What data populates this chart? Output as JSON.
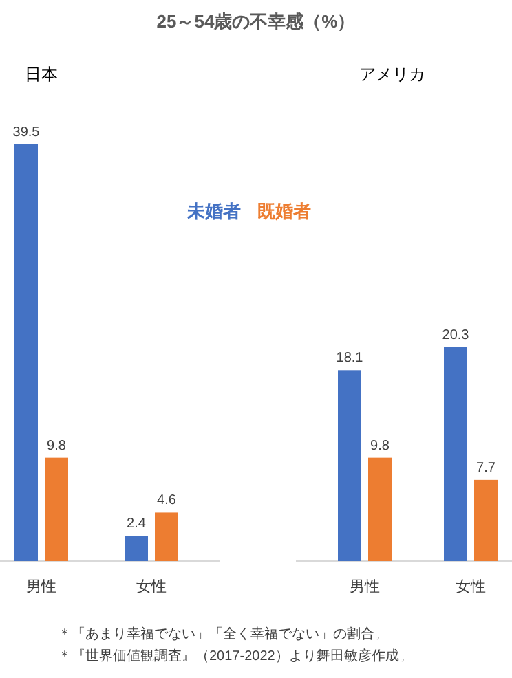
{
  "chart_data": [
    {
      "type": "bar",
      "title": "25～54歳の不幸感（%）",
      "subtitle": "日本",
      "categories": [
        "男性",
        "女性"
      ],
      "data_labels": true,
      "legend": "top right",
      "series": [
        {
          "name": "未婚者",
          "color": "#4472c4",
          "values": [
            39.5,
            2.4
          ]
        },
        {
          "name": "既婚者",
          "color": "#ed7d31",
          "values": [
            9.8,
            4.6
          ]
        }
      ]
    },
    {
      "type": "bar",
      "subtitle": "アメリカ",
      "categories": [
        "男性",
        "女性"
      ],
      "data_labels": true,
      "series": [
        {
          "color": "#4472c4",
          "values": [
            18.1,
            20.3
          ]
        },
        {
          "color": "#ed7d31",
          "values": [
            9.8,
            7.7
          ]
        }
      ],
      "annotations": [
        "＊「あまり幸福でない」「全く幸福でない」の割合。",
        "＊『世界価値観調査』（2017-2022）より舞田敏彦作成。"
      ]
    }
  ]
}
